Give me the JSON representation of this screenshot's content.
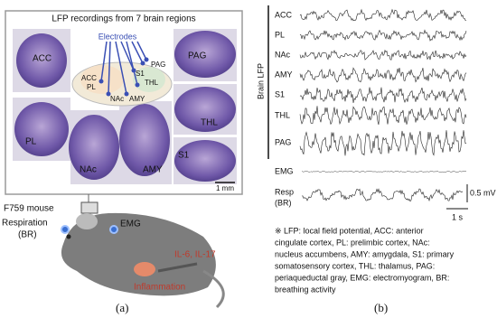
{
  "panel_a": {
    "title": "LFP recordings from 7 brain regions",
    "electrodes_label": "Electrodes",
    "schematic_labels": [
      "ACC",
      "PL",
      "NAc",
      "AMY",
      "S1",
      "THL",
      "PAG"
    ],
    "slice_labels": [
      "ACC",
      "PL",
      "NAc",
      "AMY",
      "PAG",
      "THL",
      "S1"
    ],
    "scale_bar": "1 mm",
    "mouse_label": "F759 mouse",
    "respiration_label": [
      "Respiration",
      "(BR)"
    ],
    "emg_label": "EMG",
    "cytokines": "IL-6, IL-17",
    "inflammation": "Inflammation",
    "label": "(a)"
  },
  "panel_b": {
    "group_label": "Brain LFP",
    "lfp_traces": [
      "ACC",
      "PL",
      "NAc",
      "AMY",
      "S1",
      "THL",
      "PAG"
    ],
    "emg_trace": "EMG",
    "resp_trace": [
      "Resp",
      "(BR)"
    ],
    "amplitude_scale": "0.5 mV",
    "time_scale": "1 s",
    "caption": [
      "※ LFP: local field potential, ACC: anterior",
      "cingulate cortex, PL: prelimbic cortex, NAc:",
      "nucleus accumbens, AMY: amygdala, S1: primary",
      "somatosensory cortex, THL: thalamus, PAG:",
      "periaqueductal gray, EMG: electromyogram, BR:",
      "breathing activity"
    ],
    "label": "(b)"
  }
}
